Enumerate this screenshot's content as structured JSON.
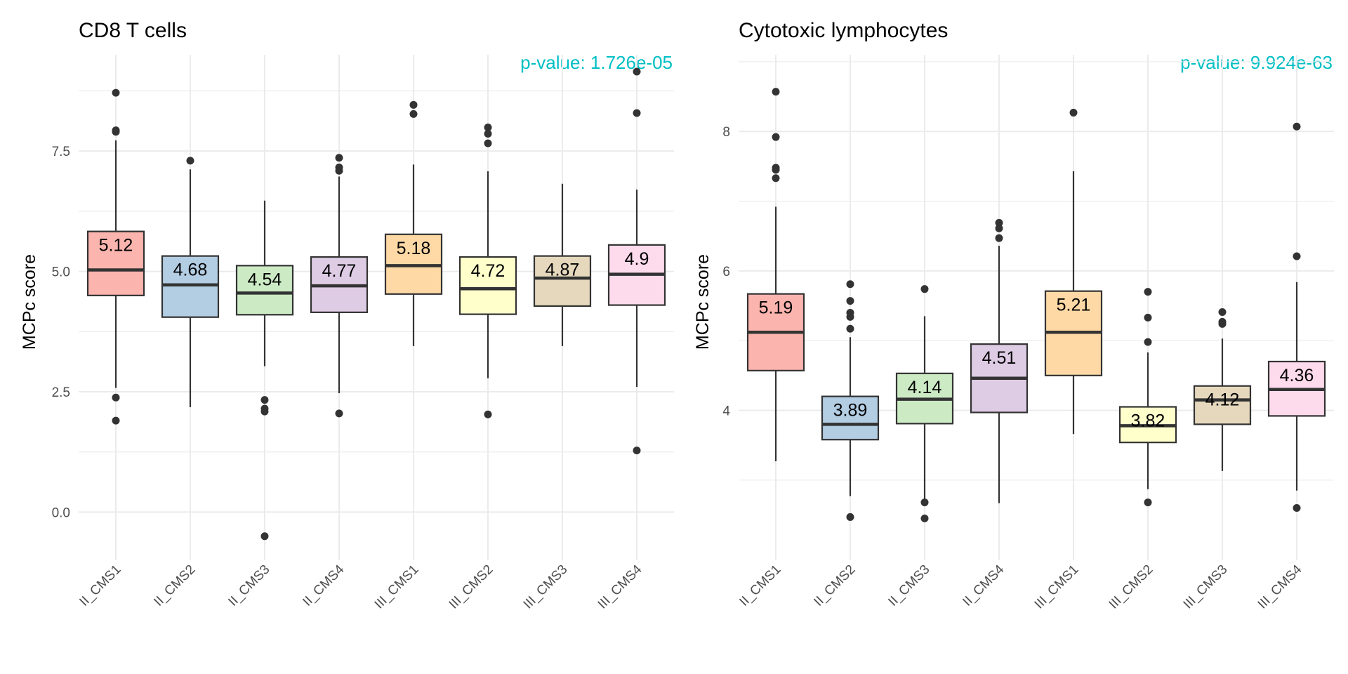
{
  "chart_data": [
    {
      "type": "box",
      "title": "CD8 T cells",
      "annotation": "p-value: 1.726e-05",
      "ylabel": "MCPc score",
      "xlabel": "",
      "ylim": [
        -1.0,
        9.5
      ],
      "y_ticks": [
        0,
        2.5,
        5,
        7.5
      ],
      "y_tick_labels": [
        "0.0",
        "2.5",
        "5.0",
        "7.5"
      ],
      "grid": true,
      "categories": [
        "II_CMS1",
        "II_CMS2",
        "II_CMS3",
        "II_CMS4",
        "III_CMS1",
        "III_CMS2",
        "III_CMS3",
        "III_CMS4"
      ],
      "boxes": [
        {
          "q1": 4.5,
          "median": 5.03,
          "q3": 5.83,
          "whisker_low": 2.58,
          "whisker_high": 7.72,
          "outliers": [
            8.71,
            7.93,
            7.9,
            2.38,
            1.9
          ],
          "label": "5.12"
        },
        {
          "q1": 4.05,
          "median": 4.72,
          "q3": 5.32,
          "whisker_low": 2.18,
          "whisker_high": 7.12,
          "outliers": [
            7.3
          ],
          "label": "4.68"
        },
        {
          "q1": 4.1,
          "median": 4.55,
          "q3": 5.12,
          "whisker_low": 3.03,
          "whisker_high": 6.47,
          "outliers": [
            2.33,
            2.15,
            2.09,
            -0.5
          ],
          "label": "4.54"
        },
        {
          "q1": 4.15,
          "median": 4.7,
          "q3": 5.3,
          "whisker_low": 2.47,
          "whisker_high": 6.97,
          "outliers": [
            7.36,
            7.16,
            7.09,
            2.05
          ],
          "label": "4.77"
        },
        {
          "q1": 4.53,
          "median": 5.12,
          "q3": 5.77,
          "whisker_low": 3.45,
          "whisker_high": 7.22,
          "outliers": [
            8.46,
            8.27
          ],
          "label": "5.18"
        },
        {
          "q1": 4.11,
          "median": 4.64,
          "q3": 5.3,
          "whisker_low": 2.78,
          "whisker_high": 7.08,
          "outliers": [
            7.99,
            7.86,
            7.66,
            2.03
          ],
          "label": "4.72"
        },
        {
          "q1": 4.28,
          "median": 4.86,
          "q3": 5.32,
          "whisker_low": 3.45,
          "whisker_high": 6.82,
          "outliers": [],
          "label": "4.87"
        },
        {
          "q1": 4.3,
          "median": 4.94,
          "q3": 5.55,
          "whisker_low": 2.6,
          "whisker_high": 6.7,
          "outliers": [
            9.15,
            8.29,
            1.28
          ],
          "label": "4.9"
        }
      ]
    },
    {
      "type": "box",
      "title": "Cytotoxic lymphocytes",
      "annotation": "p-value: 9.924e-63",
      "ylabel": "MCPc score",
      "xlabel": "",
      "ylim": [
        1.85,
        9.1
      ],
      "y_ticks": [
        4,
        6,
        8
      ],
      "y_tick_labels": [
        "4",
        "6",
        "8"
      ],
      "grid": true,
      "categories": [
        "II_CMS1",
        "II_CMS2",
        "II_CMS3",
        "II_CMS4",
        "III_CMS1",
        "III_CMS2",
        "III_CMS3",
        "III_CMS4"
      ],
      "boxes": [
        {
          "q1": 4.57,
          "median": 5.12,
          "q3": 5.67,
          "whisker_low": 3.27,
          "whisker_high": 6.92,
          "outliers": [
            8.57,
            7.92,
            7.48,
            7.45,
            7.33
          ],
          "label": "5.19"
        },
        {
          "q1": 3.58,
          "median": 3.8,
          "q3": 4.2,
          "whisker_low": 2.77,
          "whisker_high": 5.05,
          "outliers": [
            5.81,
            5.57,
            5.4,
            5.34,
            5.17,
            2.47
          ],
          "label": "3.89"
        },
        {
          "q1": 3.81,
          "median": 4.16,
          "q3": 4.53,
          "whisker_low": 2.67,
          "whisker_high": 5.35,
          "outliers": [
            5.74,
            2.68,
            2.45
          ],
          "label": "4.14"
        },
        {
          "q1": 3.97,
          "median": 4.46,
          "q3": 4.95,
          "whisker_low": 2.67,
          "whisker_high": 6.36,
          "outliers": [
            6.69,
            6.61,
            6.47
          ],
          "label": "4.51"
        },
        {
          "q1": 4.5,
          "median": 5.12,
          "q3": 5.71,
          "whisker_low": 3.66,
          "whisker_high": 7.43,
          "outliers": [
            8.27
          ],
          "label": "5.21"
        },
        {
          "q1": 3.54,
          "median": 3.78,
          "q3": 4.05,
          "whisker_low": 2.87,
          "whisker_high": 4.83,
          "outliers": [
            5.7,
            5.33,
            4.98,
            2.68
          ],
          "label": "3.82"
        },
        {
          "q1": 3.8,
          "median": 4.15,
          "q3": 4.35,
          "whisker_low": 3.13,
          "whisker_high": 5.03,
          "outliers": [
            5.41,
            5.27,
            5.24
          ],
          "label": "4.12"
        },
        {
          "q1": 3.92,
          "median": 4.3,
          "q3": 4.7,
          "whisker_low": 2.85,
          "whisker_high": 5.84,
          "outliers": [
            8.07,
            6.21,
            2.6
          ],
          "label": "4.36"
        }
      ]
    }
  ],
  "colors": {
    "box_fills": [
      "#FBB4AE",
      "#B3CDE3",
      "#CCEBC5",
      "#DECBE4",
      "#FED9A6",
      "#FFFFCC",
      "#E5D8BD",
      "#FDDAEC"
    ],
    "box_stroke": "#333333",
    "annotation": "#00BFC4",
    "grid": "#EBEBEB",
    "outlier": "#333333"
  }
}
